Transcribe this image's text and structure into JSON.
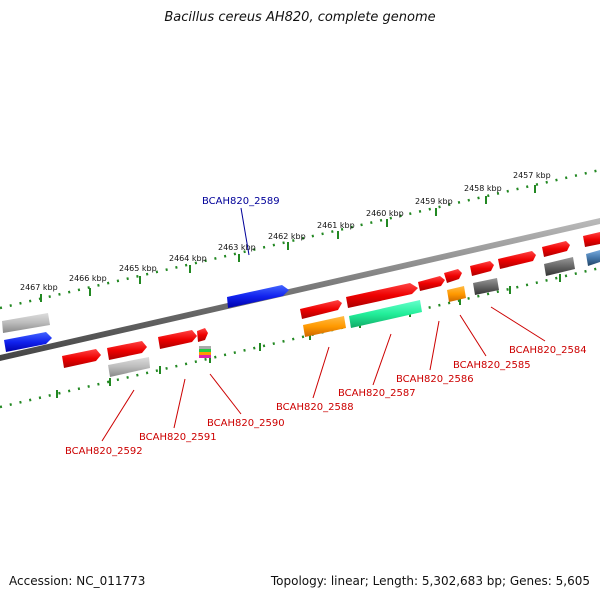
{
  "title": "Bacillus cereus AH820, complete genome",
  "footer": {
    "accession": "Accession: NC_011773",
    "summary": "Topology: linear; Length: 5,302,683 bp; Genes: 5,605"
  },
  "colors": {
    "gene_red": "#ee1111",
    "gene_blue": "#1133dd",
    "gene_gray": "#aaaaaa",
    "gene_darkgray": "#666666",
    "gene_orange": "#ff9900",
    "gene_green": "#22dd99",
    "gene_steelblue": "#4477aa",
    "label_red": "#cc0000",
    "label_blue": "#000099",
    "tick_green": "#228822"
  },
  "scale_labels": [
    "2457 kbp",
    "2458 kbp",
    "2459 kbp",
    "2460 kbp",
    "2461 kbp",
    "2462 kbp",
    "2463 kbp",
    "2464 kbp",
    "2465 kbp",
    "2466 kbp",
    "2467 kbp"
  ],
  "gene_labels": [
    "BCAH820_2589",
    "BCAH820_2584",
    "BCAH820_2585",
    "BCAH820_2586",
    "BCAH820_2587",
    "BCAH820_2588",
    "BCAH820_2590",
    "BCAH820_2591",
    "BCAH820_2592"
  ]
}
